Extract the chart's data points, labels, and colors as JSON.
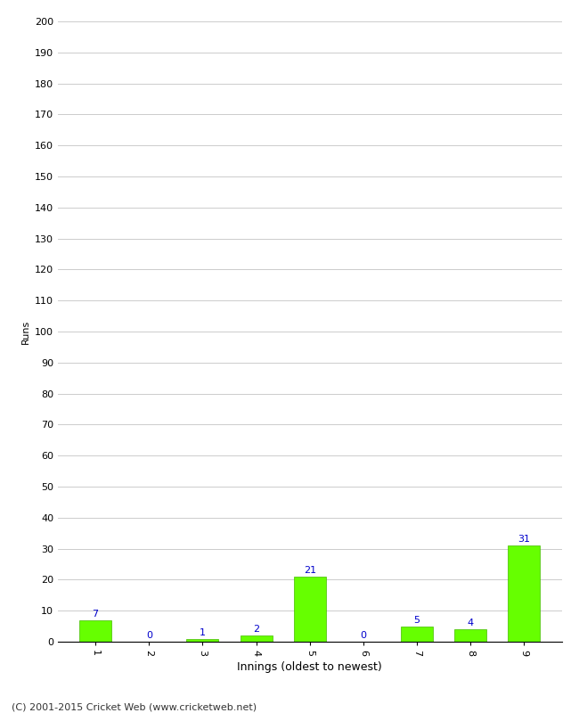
{
  "xlabel": "Innings (oldest to newest)",
  "ylabel": "Runs",
  "categories": [
    "1",
    "2",
    "3",
    "4",
    "5",
    "6",
    "7",
    "8",
    "9"
  ],
  "values": [
    7,
    0,
    1,
    2,
    21,
    0,
    5,
    4,
    31
  ],
  "bar_color": "#66ff00",
  "bar_edge_color": "#44bb00",
  "label_color": "#0000cc",
  "ylim": [
    0,
    200
  ],
  "yticks": [
    0,
    10,
    20,
    30,
    40,
    50,
    60,
    70,
    80,
    90,
    100,
    110,
    120,
    130,
    140,
    150,
    160,
    170,
    180,
    190,
    200
  ],
  "background_color": "#ffffff",
  "grid_color": "#cccccc",
  "footer": "(C) 2001-2015 Cricket Web (www.cricketweb.net)",
  "ylabel_fontsize": 8,
  "xlabel_fontsize": 9,
  "tick_fontsize": 8,
  "label_fontsize": 8,
  "footer_fontsize": 8
}
